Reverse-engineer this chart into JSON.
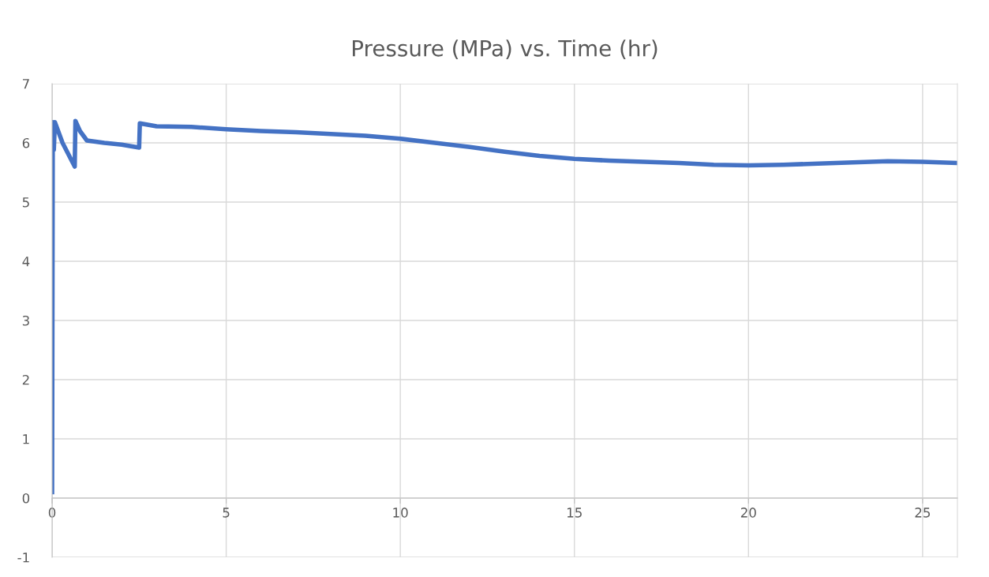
{
  "chart_data": {
    "type": "line",
    "title": "Pressure (MPa) vs. Time (hr)",
    "series": [
      {
        "color": "#4472c4",
        "x": [
          0,
          0.02,
          0.05,
          0.08,
          0.3,
          0.65,
          0.67,
          0.8,
          1.0,
          1.5,
          2.0,
          2.5,
          2.52,
          3,
          4,
          5,
          6,
          7,
          8,
          9,
          10,
          11,
          12,
          13,
          14,
          15,
          16,
          17,
          18,
          19,
          20,
          21,
          22,
          23,
          24,
          25,
          26
        ],
        "values": [
          0.1,
          6.35,
          5.88,
          6.35,
          6.0,
          5.6,
          6.37,
          6.2,
          6.04,
          6.0,
          5.97,
          5.92,
          6.33,
          6.28,
          6.27,
          6.23,
          6.2,
          6.18,
          6.15,
          6.12,
          6.07,
          6.0,
          5.93,
          5.85,
          5.78,
          5.73,
          5.7,
          5.68,
          5.66,
          5.63,
          5.62,
          5.63,
          5.65,
          5.67,
          5.69,
          5.68,
          5.66
        ]
      }
    ],
    "xlim": [
      0,
      26
    ],
    "xticks": [
      0,
      5,
      10,
      15,
      20,
      25
    ],
    "ylim": [
      -1,
      7
    ],
    "yticks": [
      -1,
      0,
      1,
      2,
      3,
      4,
      5,
      6,
      7
    ],
    "grid": true,
    "legend": false,
    "marker": "none",
    "line_style": "solid"
  }
}
